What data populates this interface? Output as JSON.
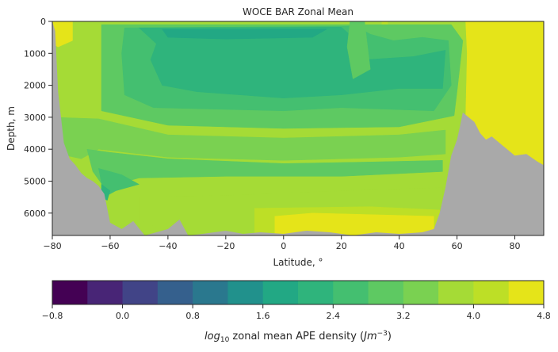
{
  "chart_data": {
    "type": "contour",
    "title": "WOCE BAR Zonal Mean",
    "xlabel": "Latitude, °",
    "ylabel": "Depth, m",
    "xlim": [
      -80,
      90
    ],
    "ylim": [
      6700,
      0
    ],
    "x_ticks": [
      -80,
      -60,
      -40,
      -20,
      0,
      20,
      40,
      60,
      80
    ],
    "y_ticks": [
      0,
      1000,
      2000,
      3000,
      4000,
      5000,
      6000
    ],
    "colorbar": {
      "label_prefix": "log",
      "label_sub": "10",
      "label_middle": " zonal mean APE density (",
      "label_unit": "Jm",
      "label_sup": "−3",
      "label_suffix": ")",
      "levels": [
        -0.8,
        -0.4,
        0.0,
        0.4,
        0.8,
        1.2,
        1.6,
        2.0,
        2.4,
        2.8,
        3.2,
        3.6,
        4.0,
        4.4,
        4.8
      ],
      "tick_values": [
        -0.8,
        0.0,
        0.8,
        1.6,
        2.4,
        3.2,
        4.0,
        4.8
      ],
      "tick_labels": [
        "−0.8",
        "0.0",
        "0.8",
        "1.6",
        "2.4",
        "3.2",
        "4.0",
        "4.8"
      ],
      "colors": [
        "#440154",
        "#482576",
        "#414487",
        "#35608d",
        "#2a788e",
        "#21918c",
        "#22a884",
        "#2fb47c",
        "#44bf70",
        "#5ec962",
        "#7ad151",
        "#a5db36",
        "#bddf26",
        "#e5e419"
      ]
    },
    "bathymetry_color": "#a9a9a9",
    "bathymetry_depth": [
      [
        -80,
        0
      ],
      [
        -79,
        300
      ],
      [
        -78,
        2200
      ],
      [
        -76,
        3800
      ],
      [
        -74,
        4300
      ],
      [
        -72,
        4500
      ],
      [
        -70,
        4750
      ],
      [
        -68,
        4900
      ],
      [
        -66,
        5000
      ],
      [
        -64,
        5150
      ],
      [
        -62,
        5400
      ],
      [
        -60,
        6300
      ],
      [
        -56,
        6500
      ],
      [
        -52,
        6250
      ],
      [
        -48,
        6700
      ],
      [
        -44,
        6600
      ],
      [
        -40,
        6500
      ],
      [
        -36,
        6200
      ],
      [
        -33,
        6700
      ],
      [
        -28,
        6650
      ],
      [
        -20,
        6550
      ],
      [
        -14,
        6650
      ],
      [
        -8,
        6600
      ],
      [
        0,
        6650
      ],
      [
        8,
        6550
      ],
      [
        16,
        6600
      ],
      [
        24,
        6700
      ],
      [
        32,
        6600
      ],
      [
        40,
        6650
      ],
      [
        48,
        6600
      ],
      [
        52,
        6500
      ],
      [
        54,
        6000
      ],
      [
        56,
        5200
      ],
      [
        58,
        4200
      ],
      [
        60,
        3700
      ],
      [
        61,
        3300
      ],
      [
        62,
        2850
      ],
      [
        64,
        3000
      ],
      [
        66,
        3150
      ],
      [
        68,
        3500
      ],
      [
        70,
        3700
      ],
      [
        72,
        3600
      ],
      [
        76,
        3900
      ],
      [
        80,
        4200
      ],
      [
        84,
        4150
      ],
      [
        88,
        4400
      ],
      [
        90,
        4500
      ]
    ],
    "field_bands": [
      {
        "level": 4.4,
        "polygon": [
          [
            -80,
            0
          ],
          [
            -73,
            0
          ],
          [
            -73,
            600
          ],
          [
            -78,
            800
          ],
          [
            -80,
            700
          ]
        ]
      },
      {
        "level": 4.4,
        "polygon": [
          [
            63,
            0
          ],
          [
            90,
            0
          ],
          [
            90,
            4500
          ],
          [
            76,
            4100
          ],
          [
            68,
            3600
          ],
          [
            63,
            3000
          ],
          [
            63.5,
            1000
          ]
        ]
      },
      {
        "level": 4.0,
        "polygon": [
          [
            34,
            0
          ],
          [
            36,
            0
          ],
          [
            36,
            1800
          ],
          [
            34,
            2000
          ]
        ]
      },
      {
        "level": 2.8,
        "polygon": [
          [
            -63,
            100
          ],
          [
            58,
            100
          ],
          [
            62,
            600
          ],
          [
            60,
            2200
          ],
          [
            59,
            2950
          ],
          [
            40,
            3300
          ],
          [
            0,
            3350
          ],
          [
            -40,
            3250
          ],
          [
            -63,
            2800
          ]
        ]
      },
      {
        "level": 2.4,
        "polygon": [
          [
            -55,
            200
          ],
          [
            25,
            150
          ],
          [
            30,
            400
          ],
          [
            38,
            600
          ],
          [
            48,
            500
          ],
          [
            57,
            600
          ],
          [
            58,
            2000
          ],
          [
            52,
            2800
          ],
          [
            20,
            2700
          ],
          [
            0,
            2800
          ],
          [
            -45,
            2700
          ],
          [
            -55,
            2300
          ],
          [
            -56,
            1000
          ]
        ]
      },
      {
        "level": 2.0,
        "polygon": [
          [
            -50,
            200
          ],
          [
            20,
            180
          ],
          [
            24,
            500
          ],
          [
            28,
            1200
          ],
          [
            45,
            1100
          ],
          [
            56,
            900
          ],
          [
            55,
            2100
          ],
          [
            40,
            2100
          ],
          [
            20,
            2300
          ],
          [
            0,
            2400
          ],
          [
            -30,
            2200
          ],
          [
            -42,
            2000
          ],
          [
            -46,
            1200
          ],
          [
            -44,
            700
          ]
        ]
      },
      {
        "level": 1.6,
        "polygon": [
          [
            -42,
            250
          ],
          [
            15,
            240
          ],
          [
            10,
            500
          ],
          [
            -20,
            550
          ],
          [
            -40,
            500
          ]
        ]
      },
      {
        "level": 2.8,
        "polygon": [
          [
            23,
            0
          ],
          [
            28,
            0
          ],
          [
            30,
            1500
          ],
          [
            24,
            1800
          ],
          [
            22,
            800
          ]
        ]
      },
      {
        "level": 3.2,
        "polygon": [
          [
            -80,
            3000
          ],
          [
            -64,
            3050
          ],
          [
            -40,
            3550
          ],
          [
            0,
            3650
          ],
          [
            40,
            3550
          ],
          [
            56,
            3400
          ],
          [
            56,
            4150
          ],
          [
            40,
            4250
          ],
          [
            0,
            4350
          ],
          [
            -40,
            4250
          ],
          [
            -64,
            4000
          ],
          [
            -70,
            4300
          ],
          [
            -80,
            4100
          ]
        ]
      },
      {
        "level": 2.8,
        "polygon": [
          [
            -68,
            4000
          ],
          [
            -60,
            4100
          ],
          [
            -40,
            4300
          ],
          [
            0,
            4450
          ],
          [
            30,
            4400
          ],
          [
            55,
            4350
          ],
          [
            55,
            4700
          ],
          [
            20,
            4850
          ],
          [
            -20,
            4850
          ],
          [
            -50,
            4900
          ],
          [
            -62,
            5200
          ],
          [
            -66,
            4700
          ]
        ]
      },
      {
        "level": 2.4,
        "polygon": [
          [
            -64,
            4600
          ],
          [
            -56,
            4800
          ],
          [
            -50,
            5100
          ],
          [
            -58,
            5300
          ],
          [
            -62,
            5500
          ]
        ]
      },
      {
        "level": 2.0,
        "polygon": [
          [
            -63,
            5100
          ],
          [
            -60,
            5300
          ],
          [
            -61,
            5600
          ],
          [
            -63,
            5500
          ]
        ]
      },
      {
        "level": 3.6,
        "polygon": [
          [
            -50,
            5500
          ],
          [
            -20,
            5450
          ],
          [
            20,
            5300
          ],
          [
            55,
            5200
          ],
          [
            55,
            6300
          ],
          [
            10,
            6600
          ],
          [
            -40,
            6600
          ],
          [
            -50,
            6200
          ]
        ]
      },
      {
        "level": 4.0,
        "polygon": [
          [
            -10,
            5850
          ],
          [
            30,
            5800
          ],
          [
            54,
            5900
          ],
          [
            54,
            6700
          ],
          [
            -10,
            6700
          ]
        ]
      },
      {
        "level": 4.4,
        "polygon": [
          [
            -3,
            6100
          ],
          [
            10,
            6000
          ],
          [
            52,
            6100
          ],
          [
            52,
            6700
          ],
          [
            -3,
            6700
          ]
        ]
      }
    ],
    "background_level": 3.6
  }
}
